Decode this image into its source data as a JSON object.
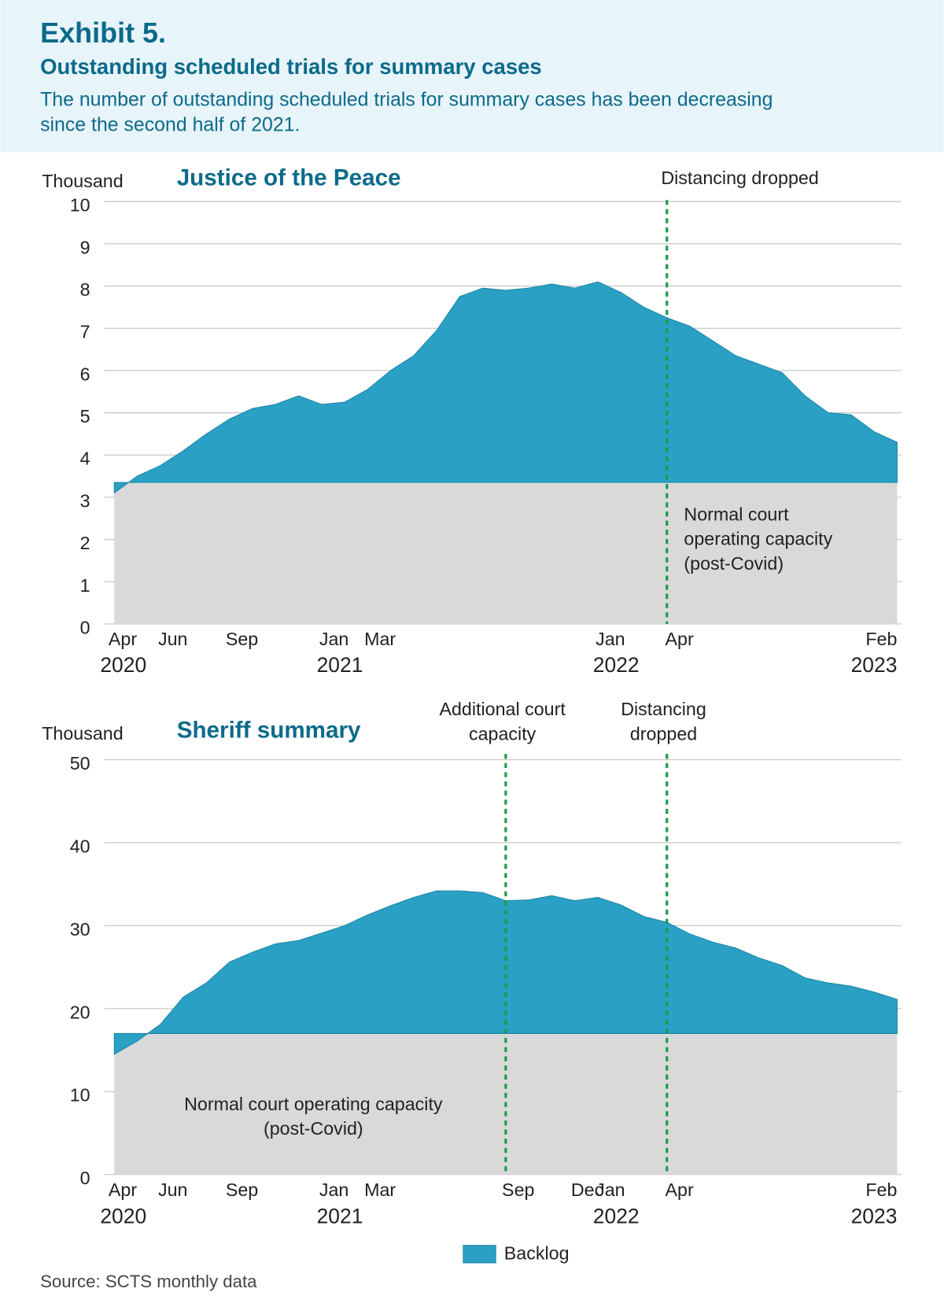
{
  "header": {
    "title": "Exhibit 5.",
    "subtitle": "Outstanding scheduled trials for summary cases",
    "description": [
      "The number of outstanding scheduled trials for summary cases has been decreasing",
      "since the second half of 2021."
    ]
  },
  "legend_label": "Backlog",
  "source": "Source: SCTS monthly data",
  "chart_data": [
    {
      "type": "area",
      "title": "Justice of the Peace",
      "y_label": "Thousand",
      "x": [
        "2020-04",
        "2020-05",
        "2020-06",
        "2020-07",
        "2020-08",
        "2020-09",
        "2020-10",
        "2020-11",
        "2020-12",
        "2021-01",
        "2021-02",
        "2021-03",
        "2021-04",
        "2021-05",
        "2021-06",
        "2021-07",
        "2021-08",
        "2021-09",
        "2021-10",
        "2021-11",
        "2021-12",
        "2022-01",
        "2022-02",
        "2022-03",
        "2022-04",
        "2022-05",
        "2022-06",
        "2022-07",
        "2022-08",
        "2022-09",
        "2022-10",
        "2022-11",
        "2022-12",
        "2023-01",
        "2023-02"
      ],
      "series": [
        {
          "color": "#2aa0c4",
          "values": [
            3.1,
            3.5,
            3.75,
            4.1,
            4.5,
            4.85,
            5.1,
            5.2,
            5.4,
            5.2,
            5.25,
            5.55,
            6.0,
            6.35,
            6.95,
            7.75,
            7.95,
            7.9,
            7.95,
            8.05,
            7.95,
            8.1,
            7.85,
            7.5,
            7.25,
            7.05,
            6.7,
            6.35,
            6.15,
            5.95,
            5.4,
            5.0,
            4.95,
            4.55,
            4.3
          ]
        }
      ],
      "capacity": {
        "value": 3.35,
        "color": "#d9d9d9",
        "label": [
          "Normal court",
          "operating capacity",
          "(post-Covid)"
        ]
      },
      "events": [
        {
          "x": "2022-04",
          "label": [
            "Distancing dropped"
          ]
        }
      ],
      "ylim": [
        0,
        10
      ],
      "yticks": [
        0,
        1,
        2,
        3,
        4,
        5,
        6,
        7,
        8,
        9,
        10
      ],
      "xticks": [
        {
          "value": "2020-04",
          "label": "Apr"
        },
        {
          "value": "2020-06",
          "label": "Jun"
        },
        {
          "value": "2020-09",
          "label": "Sep"
        },
        {
          "value": "2021-01",
          "label": "Jan"
        },
        {
          "value": "2021-03",
          "label": "Mar"
        },
        {
          "value": "2022-01",
          "label": "Jan"
        },
        {
          "value": "2022-04",
          "label": "Apr"
        },
        {
          "value": "2023-02",
          "label": "Feb"
        }
      ],
      "xyears": [
        {
          "value": "2020-04",
          "label": "2020"
        },
        {
          "value": "2021-01",
          "label": "2021"
        },
        {
          "value": "2022-01",
          "label": "2022"
        },
        {
          "value": "2023-02",
          "label": "2023"
        }
      ],
      "grid": true
    },
    {
      "type": "area",
      "title": "Sheriff summary",
      "y_label": "Thousand",
      "x": [
        "2020-04",
        "2020-05",
        "2020-06",
        "2020-07",
        "2020-08",
        "2020-09",
        "2020-10",
        "2020-11",
        "2020-12",
        "2021-01",
        "2021-02",
        "2021-03",
        "2021-04",
        "2021-05",
        "2021-06",
        "2021-07",
        "2021-08",
        "2021-09",
        "2021-10",
        "2021-11",
        "2021-12",
        "2022-01",
        "2022-02",
        "2022-03",
        "2022-04",
        "2022-05",
        "2022-06",
        "2022-07",
        "2022-08",
        "2022-09",
        "2022-10",
        "2022-11",
        "2022-12",
        "2023-01",
        "2023-02"
      ],
      "series": [
        {
          "color": "#2aa0c4",
          "values": [
            14.5,
            16.1,
            18.1,
            21.4,
            23.1,
            25.6,
            26.8,
            27.8,
            28.2,
            29.1,
            30.0,
            31.3,
            32.4,
            33.4,
            34.2,
            34.2,
            34.0,
            33.0,
            33.1,
            33.6,
            33.0,
            33.4,
            32.5,
            31.1,
            30.4,
            29.0,
            28.0,
            27.3,
            26.1,
            25.2,
            23.7,
            23.1,
            22.7,
            22.0,
            21.1
          ]
        }
      ],
      "capacity": {
        "value": 17,
        "color": "#d9d9d9",
        "label": [
          "Normal court operating capacity",
          "(post-Covid)"
        ]
      },
      "events": [
        {
          "x": "2021-09",
          "label": [
            "Additional court",
            "capacity"
          ]
        },
        {
          "x": "2022-04",
          "label": [
            "Distancing",
            "dropped"
          ]
        }
      ],
      "ylim": [
        0,
        50
      ],
      "yticks": [
        0,
        10,
        20,
        30,
        40,
        50
      ],
      "xticks": [
        {
          "value": "2020-04",
          "label": "Apr"
        },
        {
          "value": "2020-06",
          "label": "Jun"
        },
        {
          "value": "2020-09",
          "label": "Sep"
        },
        {
          "value": "2021-01",
          "label": "Jan"
        },
        {
          "value": "2021-03",
          "label": "Mar"
        },
        {
          "value": "2021-09",
          "label": "Sep"
        },
        {
          "value": "2021-12",
          "label": "Dec"
        },
        {
          "value": "2022-01",
          "label": "Jan"
        },
        {
          "value": "2022-04",
          "label": "Apr"
        },
        {
          "value": "2023-02",
          "label": "Feb"
        }
      ],
      "xyears": [
        {
          "value": "2020-04",
          "label": "2020"
        },
        {
          "value": "2021-01",
          "label": "2021"
        },
        {
          "value": "2022-01",
          "label": "2022"
        },
        {
          "value": "2023-02",
          "label": "2023"
        }
      ],
      "grid": true
    }
  ]
}
